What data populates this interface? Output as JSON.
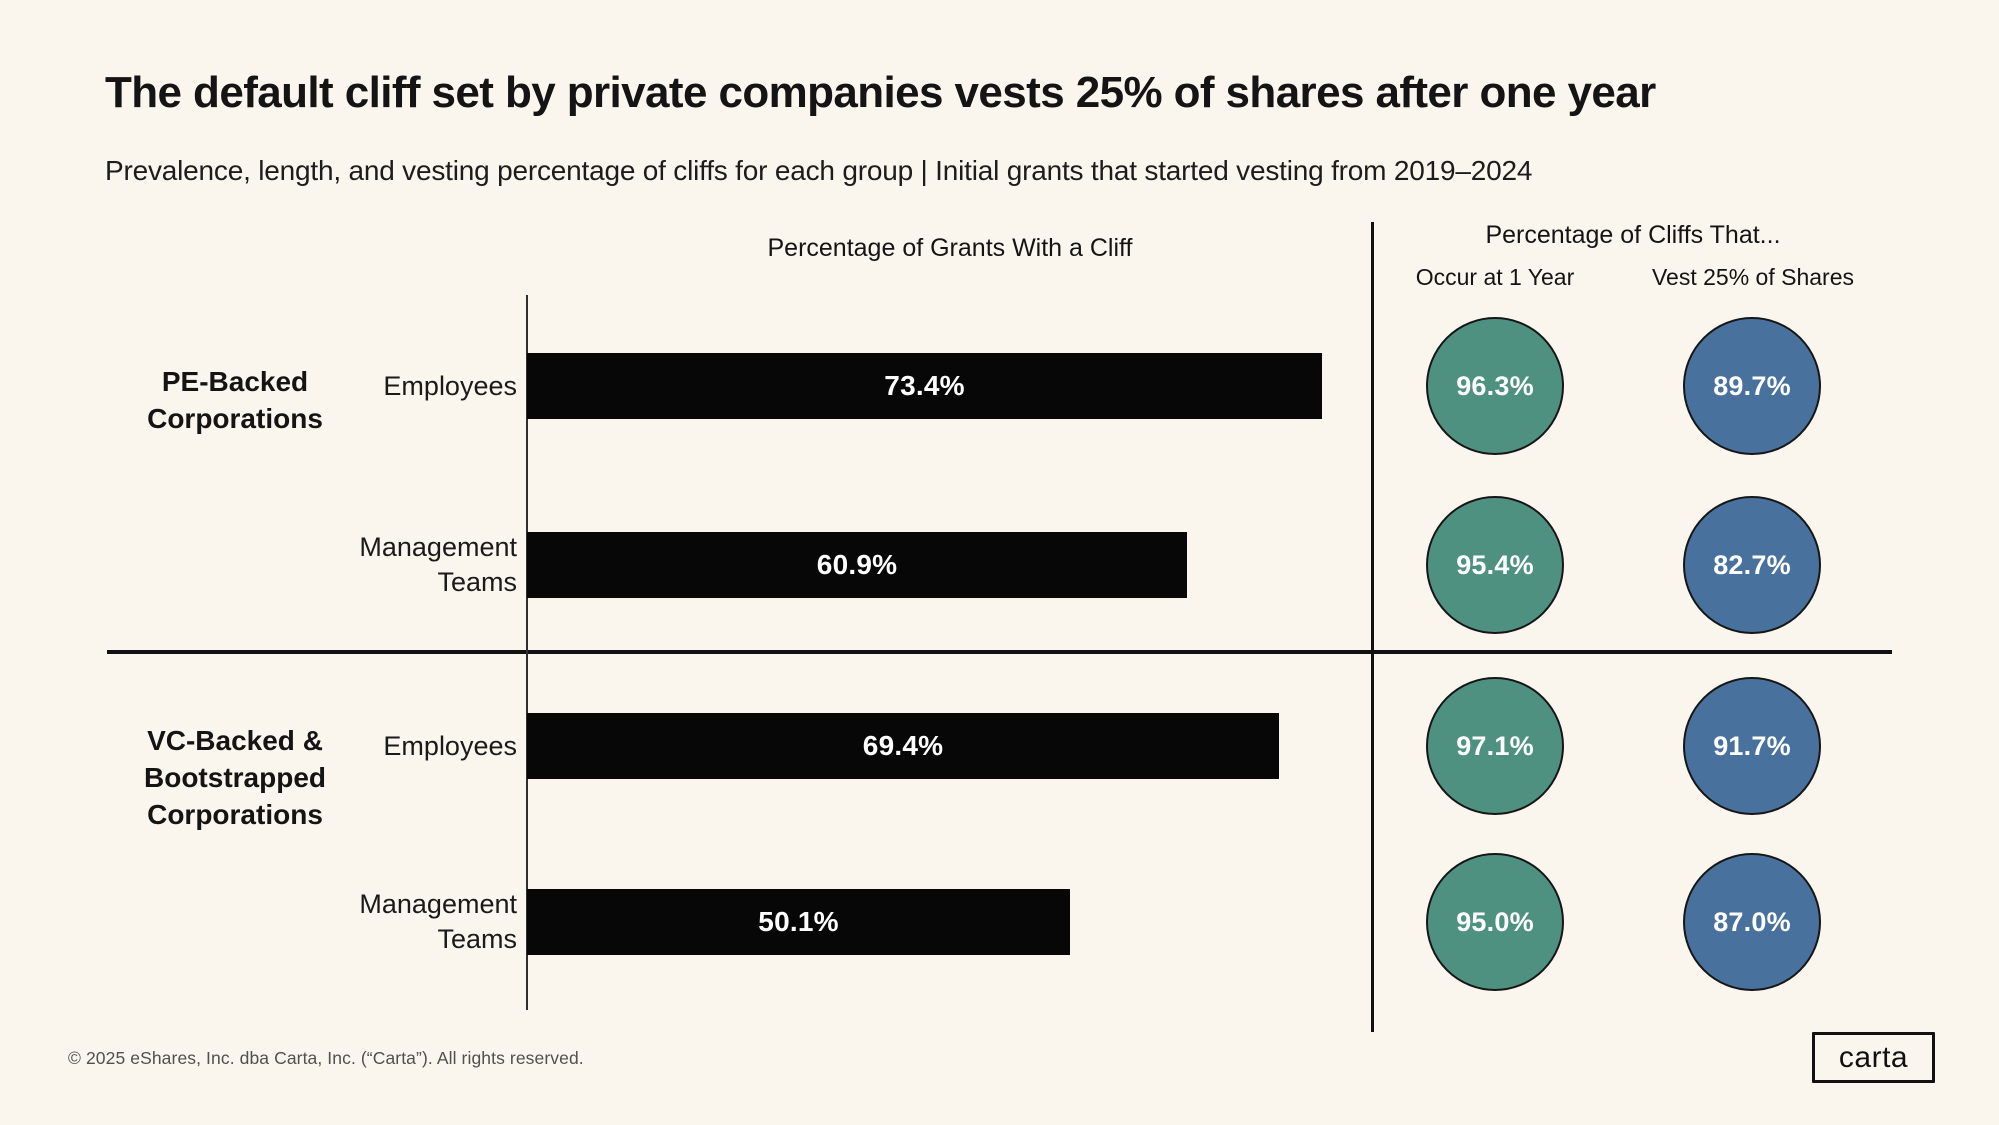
{
  "title": "The default cliff set by private companies vests 25% of shares after one year",
  "subtitle": "Prevalence, length, and vesting percentage of cliffs for each group | Initial grants that started vesting from 2019–2024",
  "left_section": {
    "header": "Percentage of Grants With a Cliff"
  },
  "right_section": {
    "header": "Percentage of Cliffs That...",
    "col1": "Occur at 1 Year",
    "col2": "Vest 25% of Shares"
  },
  "groups": [
    {
      "label": "PE-Backed\nCorporations"
    },
    {
      "label": "VC-Backed &\nBootstrapped\nCorporations"
    }
  ],
  "rows": [
    {
      "label": "Employees",
      "bar_label": "73.4%",
      "occur_label": "96.3%",
      "vest_label": "89.7%"
    },
    {
      "label": "Management\nTeams",
      "bar_label": "60.9%",
      "occur_label": "95.4%",
      "vest_label": "82.7%"
    },
    {
      "label": "Employees",
      "bar_label": "69.4%",
      "occur_label": "97.1%",
      "vest_label": "91.7%"
    },
    {
      "label": "Management\nTeams",
      "bar_label": "50.1%",
      "occur_label": "95.0%",
      "vest_label": "87.0%"
    }
  ],
  "chart_data": {
    "type": "bar",
    "categories": [
      "PE-Backed Corporations — Employees",
      "PE-Backed Corporations — Management Teams",
      "VC-Backed & Bootstrapped Corporations — Employees",
      "VC-Backed & Bootstrapped Corporations — Management Teams"
    ],
    "series": [
      {
        "name": "Percentage of Grants With a Cliff",
        "values": [
          73.4,
          60.9,
          69.4,
          50.1
        ]
      },
      {
        "name": "Percentage of Cliffs That Occur at 1 Year",
        "values": [
          96.3,
          95.4,
          97.1,
          95.0
        ]
      },
      {
        "name": "Percentage of Cliffs That Vest 25% of Shares",
        "values": [
          89.7,
          82.7,
          91.7,
          87.0
        ]
      }
    ],
    "title": "The default cliff set by private companies vests 25% of shares after one year",
    "xlabel": "Percentage of Grants With a Cliff",
    "ylabel": "",
    "xlim": [
      0,
      92.3
    ],
    "grid": false,
    "legend_position": "none",
    "orientation": "horizontal"
  },
  "colors": {
    "occur_green": "#4f9181",
    "vest_blue": "#48719d",
    "bar_black": "#070707",
    "background": "#faf6ee",
    "text": "#141414",
    "footer_gray": "#51504c"
  },
  "footer": "© 2025 eShares, Inc. dba Carta, Inc. (“Carta”). All rights reserved.",
  "logo_text": "carta"
}
